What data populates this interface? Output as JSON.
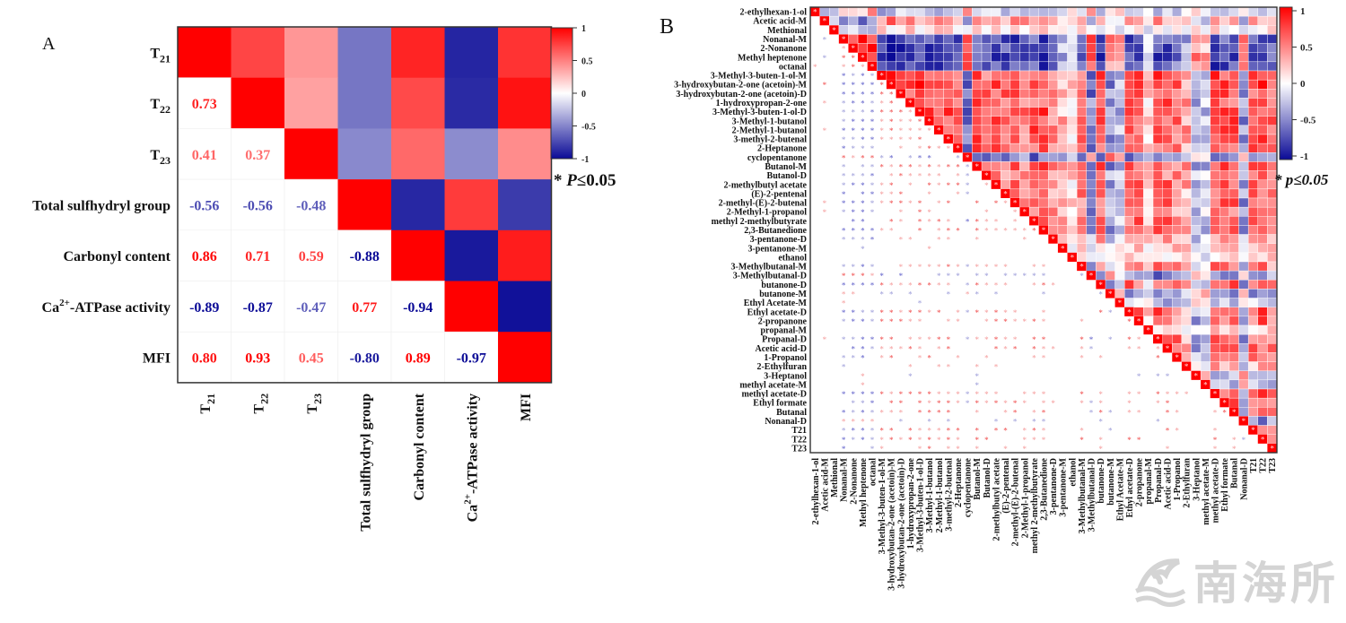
{
  "panels": {
    "a_letter": "A",
    "b_letter": "B"
  },
  "watermark": {
    "text": "南海所"
  },
  "chart_data": [
    {
      "type": "heatmap",
      "id": "A",
      "title": "",
      "variables": [
        "T21",
        "T22",
        "T23",
        "Total sulfhydryl group",
        "Carbonyl content",
        "Ca2+-ATPase activity",
        "MFI"
      ],
      "row_labels": [
        {
          "main": "T",
          "sub": "21",
          "sup": "",
          "rest": ""
        },
        {
          "main": "T",
          "sub": "22",
          "sup": "",
          "rest": ""
        },
        {
          "main": "T",
          "sub": "23",
          "sup": "",
          "rest": ""
        },
        {
          "main": "Total sulfhydryl group",
          "sub": "",
          "sup": "",
          "rest": ""
        },
        {
          "main": "Carbonyl content",
          "sub": "",
          "sup": "",
          "rest": ""
        },
        {
          "main": "Ca",
          "sub": "",
          "sup": "2+",
          "rest": "-ATPase activity"
        },
        {
          "main": "MFI",
          "sub": "",
          "sup": "",
          "rest": ""
        }
      ],
      "matrix": [
        [
          1,
          0.73,
          0.41,
          -0.56,
          0.86,
          -0.89,
          0.8
        ],
        [
          0.73,
          1,
          0.37,
          -0.56,
          0.71,
          -0.87,
          0.93
        ],
        [
          0.41,
          0.37,
          1,
          -0.48,
          0.59,
          -0.47,
          0.45
        ],
        [
          -0.56,
          -0.56,
          -0.48,
          1,
          -0.88,
          0.77,
          -0.8
        ],
        [
          0.86,
          0.71,
          0.59,
          -0.88,
          1,
          -0.94,
          0.89
        ],
        [
          -0.89,
          -0.87,
          -0.47,
          0.77,
          -0.94,
          1,
          -0.97
        ],
        [
          0.8,
          0.93,
          0.45,
          -0.8,
          0.89,
          -0.97,
          1
        ]
      ],
      "display": "upper: colored squares; lower: numeric coefficients",
      "colorbar": {
        "min": -1,
        "max": 1,
        "ticks": [
          "1",
          "0.5",
          "0",
          "-0.5",
          "-1"
        ],
        "colors": [
          "#0a0a96",
          "#ffffff",
          "#ff0000"
        ]
      },
      "significance_note": "* P≤0.05"
    },
    {
      "type": "heatmap",
      "id": "B",
      "title": "",
      "variables": [
        "2-ethylhexan-1-ol",
        "Acetic acid-M",
        "Methional",
        "Nonanal-M",
        "2-Nonanone",
        "Methyl heptenone",
        "octanal",
        "3-Methyl-3-buten-1-ol-M",
        "3-hydroxybutan-2-one (acetoin)-M",
        "3-hydroxybutan-2-one (acetoin)-D",
        "1-hydroxypropan-2-one",
        "3-Methyl-3-buten-1-ol-D",
        "3-Methyl-1-butanol",
        "2-Methyl-1-butanol",
        "3-methyl-2-butenal",
        "2-Heptanone",
        "cyclopentanone",
        "Butanol-M",
        "Butanol-D",
        "2-methylbutyl acetate",
        "(E)-2-pentenal",
        "2-methyl-(E)-2-butenal",
        "2-Methyl-1-propanol",
        "methyl 2-methylbutyrate",
        "2,3-Butanedione",
        "3-pentanone-D",
        "3-pentanone-M",
        "ethanol",
        "3-Methylbutanal-M",
        "3-Methylbutanal-D",
        "butanone-D",
        "butanone-M",
        "Ethyl Acetate-M",
        "Ethyl acetate-D",
        "2-propanone",
        "propanal-M",
        "Propanal-D",
        "Acetic acid-D",
        "1-Propanol",
        "2-Ethylfuran",
        "3-Heptanol",
        "methyl acetate-M",
        "methyl acetate-D",
        "Ethyl formate",
        "Butanal",
        "Nonanal-D",
        "T21",
        "T22",
        "T23"
      ],
      "loadings_note": "approximate coefficients read from cell colors",
      "loadings": [
        -0.3,
        0.5,
        0.1,
        -0.85,
        -0.85,
        -0.9,
        -0.85,
        0.8,
        0.85,
        0.8,
        0.75,
        0.8,
        0.8,
        0.8,
        0.75,
        0.7,
        -0.7,
        0.75,
        0.6,
        0.7,
        0.65,
        0.75,
        0.6,
        0.7,
        0.75,
        0.5,
        0.3,
        0.2,
        0.6,
        -0.6,
        0.7,
        -0.5,
        -0.3,
        0.75,
        0.7,
        0.2,
        0.75,
        0.7,
        0.6,
        0.4,
        -0.4,
        -0.3,
        0.75,
        0.7,
        0.7,
        -0.5,
        0.7,
        0.75,
        0.6
      ],
      "display": "upper: colored squares; lower: significance stars (red positive, blue negative); diagonal: red with star",
      "colorbar": {
        "min": -1,
        "max": 1,
        "ticks": [
          "1",
          "0.5",
          "0",
          "-0.5",
          "-1"
        ],
        "colors": [
          "#0a0a96",
          "#ffffff",
          "#ff0000"
        ]
      },
      "significance_note": "* p≤0.05"
    }
  ]
}
